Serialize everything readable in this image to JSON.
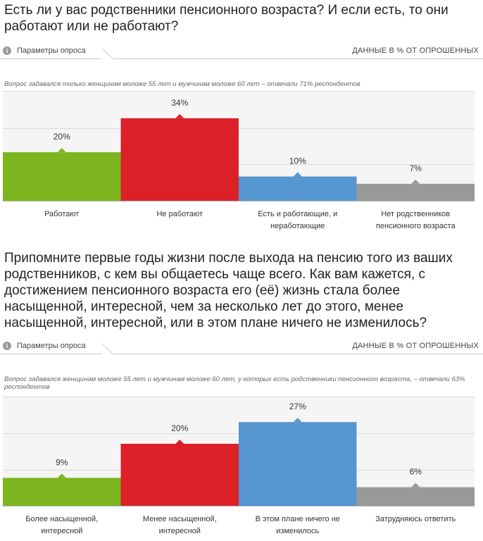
{
  "units_label": "ДАННЫЕ В % ОТ ОПРОШЕННЫХ",
  "params_label": "Параметры опроса",
  "info_icon_char": "i",
  "colors": {
    "green": "#7cb51d",
    "red": "#dc2028",
    "blue": "#5596d0",
    "gray": "#999999",
    "grid": "#d9d9d9"
  },
  "chart_data": [
    {
      "type": "bar",
      "title": "Есть ли у вас родственники пенсионного возраста? И если есть, то они работают или не работают?",
      "note": "Вопрос задавался только женщинам моложе 55 лет и мужчинам моложе 60 лет – отвечали 71% респондентов",
      "categories": [
        "Работают",
        "Не работают",
        "Есть и работающие, и неработающие",
        "Нет родственников пенсионного возраста"
      ],
      "values": [
        20,
        34,
        10,
        7
      ],
      "value_labels": [
        "20%",
        "34%",
        "10%",
        "7%"
      ],
      "colors": [
        "#7cb51d",
        "#dc2028",
        "#5596d0",
        "#999999"
      ],
      "ylim": [
        0,
        45
      ],
      "grid": true
    },
    {
      "type": "bar",
      "title": "Припомните первые годы жизни после выхода на пенсию того из ваших родственников, с кем вы общаетесь чаще всего. Как вам кажется, с достижением пенсионного возраста его (её) жизнь стала более насыщенной, интересной, чем за несколько лет до этого, менее насыщенной, интересной, или в этом плане ничего не изменилось?",
      "note": "Вопрос задавался женщинам моложе 55 лет и мужчинам моложе 60 лет, у которых есть родственники пенсионного возраста, – отвечали 63% респондентов",
      "categories": [
        "Более насыщенной, интересной",
        "Менее насыщенной, интересной",
        "В этом плане ничего не изменилось",
        "Затрудняюсь ответить"
      ],
      "values": [
        9,
        20,
        27,
        6
      ],
      "value_labels": [
        "9%",
        "20%",
        "27%",
        "6%"
      ],
      "colors": [
        "#7cb51d",
        "#dc2028",
        "#5596d0",
        "#999999"
      ],
      "ylim": [
        0,
        35
      ],
      "grid": true
    }
  ]
}
